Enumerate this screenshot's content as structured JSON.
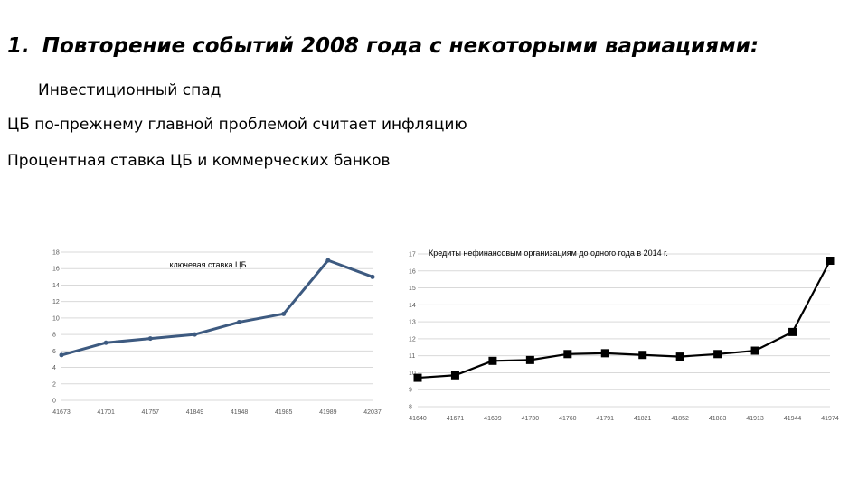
{
  "slide": {
    "heading_number": "1.",
    "heading_text": "Повторение событий 2008 года с некоторыми вариациями:",
    "lines": [
      "Инвестиционный спад",
      "ЦБ по-прежнему главной проблемой считает инфляцию",
      "Процентная ставка ЦБ и коммерческих банков"
    ]
  },
  "colors": {
    "left_series": "#3d5a80",
    "right_series": "#000000",
    "grid": "#d9d9d9",
    "tick_text": "#595959"
  },
  "chart_data": [
    {
      "type": "line",
      "title": "ключевая ставка ЦБ",
      "categories": [
        "41673",
        "41701",
        "41757",
        "41849",
        "41948",
        "41985",
        "41989",
        "42037"
      ],
      "series": [
        {
          "values": [
            5.5,
            7,
            7.5,
            8,
            9.5,
            10.5,
            17,
            15
          ]
        }
      ],
      "ylim": [
        0,
        18
      ],
      "yticks": [
        0,
        2,
        4,
        6,
        8,
        10,
        12,
        14,
        16,
        18
      ],
      "grid": true,
      "marker": "circle"
    },
    {
      "type": "line",
      "title": "Кредиты нефинансовым организациям до одного года в 2014 г.",
      "categories": [
        "41640",
        "41671",
        "41699",
        "41730",
        "41760",
        "41791",
        "41821",
        "41852",
        "41883",
        "41913",
        "41944",
        "41974"
      ],
      "series": [
        {
          "values": [
            9.7,
            9.85,
            10.7,
            10.75,
            11.1,
            11.15,
            11.05,
            10.95,
            11.1,
            11.3,
            12.4,
            16.6
          ]
        }
      ],
      "ylim": [
        8,
        17
      ],
      "yticks": [
        8,
        9,
        10,
        11,
        12,
        13,
        14,
        15,
        16,
        17
      ],
      "grid": true,
      "marker": "square"
    }
  ]
}
